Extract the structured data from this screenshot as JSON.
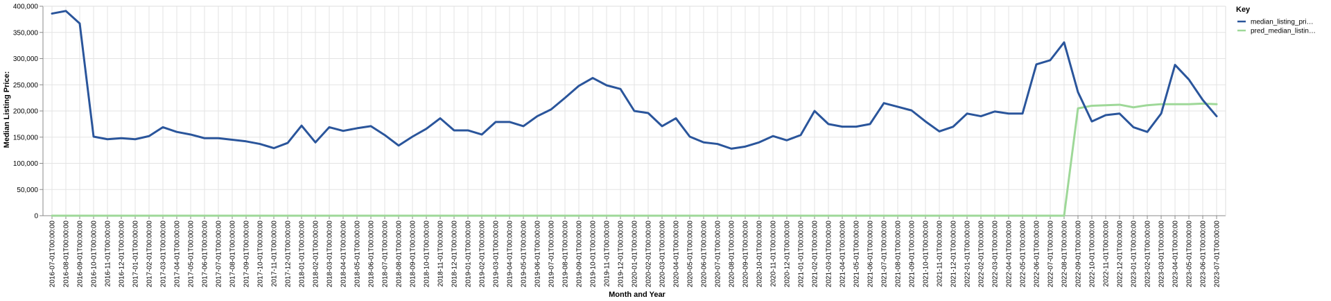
{
  "chart_data": {
    "type": "line",
    "xlabel": "Month and Year",
    "ylabel": "Median Listing Price:",
    "ylim": [
      0,
      400000
    ],
    "yticks": [
      "0",
      "50,000",
      "100,000",
      "150,000",
      "200,000",
      "250,000",
      "300,000",
      "350,000",
      "400,000"
    ],
    "grid": true,
    "legend": {
      "title": "Key",
      "placement": "top-right"
    },
    "x": [
      "2016-07-01T00:00:00",
      "2016-08-01T00:00:00",
      "2016-09-01T00:00:00",
      "2016-10-01T00:00:00",
      "2016-11-01T00:00:00",
      "2016-12-01T00:00:00",
      "2017-01-01T00:00:00",
      "2017-02-01T00:00:00",
      "2017-03-01T00:00:00",
      "2017-04-01T00:00:00",
      "2017-05-01T00:00:00",
      "2017-06-01T00:00:00",
      "2017-07-01T00:00:00",
      "2017-08-01T00:00:00",
      "2017-09-01T00:00:00",
      "2017-10-01T00:00:00",
      "2017-11-01T00:00:00",
      "2017-12-01T00:00:00",
      "2018-01-01T00:00:00",
      "2018-02-01T00:00:00",
      "2018-03-01T00:00:00",
      "2018-04-01T00:00:00",
      "2018-05-01T00:00:00",
      "2018-06-01T00:00:00",
      "2018-07-01T00:00:00",
      "2018-08-01T00:00:00",
      "2018-09-01T00:00:00",
      "2018-10-01T00:00:00",
      "2018-11-01T00:00:00",
      "2018-12-01T00:00:00",
      "2019-01-01T00:00:00",
      "2019-02-01T00:00:00",
      "2019-03-01T00:00:00",
      "2019-04-01T00:00:00",
      "2019-05-01T00:00:00",
      "2019-06-01T00:00:00",
      "2019-07-01T00:00:00",
      "2019-08-01T00:00:00",
      "2019-09-01T00:00:00",
      "2019-10-01T00:00:00",
      "2019-11-01T00:00:00",
      "2019-12-01T00:00:00",
      "2020-01-01T00:00:00",
      "2020-02-01T00:00:00",
      "2020-03-01T00:00:00",
      "2020-04-01T00:00:00",
      "2020-05-01T00:00:00",
      "2020-06-01T00:00:00",
      "2020-07-01T00:00:00",
      "2020-08-01T00:00:00",
      "2020-09-01T00:00:00",
      "2020-10-01T00:00:00",
      "2020-11-01T00:00:00",
      "2020-12-01T00:00:00",
      "2021-01-01T00:00:00",
      "2021-02-01T00:00:00",
      "2021-03-01T00:00:00",
      "2021-04-01T00:00:00",
      "2021-05-01T00:00:00",
      "2021-06-01T00:00:00",
      "2021-07-01T00:00:00",
      "2021-08-01T00:00:00",
      "2021-09-01T00:00:00",
      "2021-10-01T00:00:00",
      "2021-11-01T00:00:00",
      "2021-12-01T00:00:00",
      "2022-01-01T00:00:00",
      "2022-02-01T00:00:00",
      "2022-03-01T00:00:00",
      "2022-04-01T00:00:00",
      "2022-05-01T00:00:00",
      "2022-06-01T00:00:00",
      "2022-07-01T00:00:00",
      "2022-08-01T00:00:00",
      "2022-09-01T00:00:00",
      "2022-10-01T00:00:00",
      "2022-11-01T00:00:00",
      "2022-12-01T00:00:00",
      "2023-01-01T00:00:00",
      "2023-02-01T00:00:00",
      "2023-03-01T00:00:00",
      "2023-04-01T00:00:00",
      "2023-05-01T00:00:00",
      "2023-06-01T00:00:00",
      "2023-07-01T00:00:00"
    ],
    "series": [
      {
        "name": "median_listing_pri…",
        "color": "#2a559b",
        "values": [
          386000,
          391000,
          367000,
          151000,
          146000,
          148000,
          146000,
          152000,
          169000,
          160000,
          155000,
          148000,
          148000,
          145000,
          142000,
          137000,
          129000,
          139000,
          172000,
          140000,
          169000,
          162000,
          167000,
          171000,
          154000,
          134000,
          151000,
          166000,
          186000,
          163000,
          163000,
          155000,
          179000,
          179000,
          171000,
          190000,
          203000,
          225000,
          248000,
          263000,
          249000,
          242000,
          200000,
          196000,
          171000,
          186000,
          151000,
          140000,
          137000,
          128000,
          132000,
          140000,
          152000,
          144000,
          154000,
          200000,
          175000,
          170000,
          170000,
          175000,
          215000,
          208000,
          201000,
          180000,
          161000,
          170000,
          195000,
          190000,
          199000,
          195000,
          195000,
          289000,
          297000,
          331000,
          236000,
          180000,
          192000,
          195000,
          169000,
          160000,
          195000,
          288000,
          260000,
          221000,
          190000
        ]
      },
      {
        "name": "pred_median_listin…",
        "color": "#9ed898",
        "values": [
          0,
          0,
          0,
          0,
          0,
          0,
          0,
          0,
          0,
          0,
          0,
          0,
          0,
          0,
          0,
          0,
          0,
          0,
          0,
          0,
          0,
          0,
          0,
          0,
          0,
          0,
          0,
          0,
          0,
          0,
          0,
          0,
          0,
          0,
          0,
          0,
          0,
          0,
          0,
          0,
          0,
          0,
          0,
          0,
          0,
          0,
          0,
          0,
          0,
          0,
          0,
          0,
          0,
          0,
          0,
          0,
          0,
          0,
          0,
          0,
          0,
          0,
          0,
          0,
          0,
          0,
          0,
          0,
          0,
          0,
          0,
          0,
          0,
          0,
          205000,
          210000,
          211000,
          212000,
          207000,
          211000,
          213000,
          213000,
          213000,
          214000,
          213000
        ]
      }
    ]
  }
}
